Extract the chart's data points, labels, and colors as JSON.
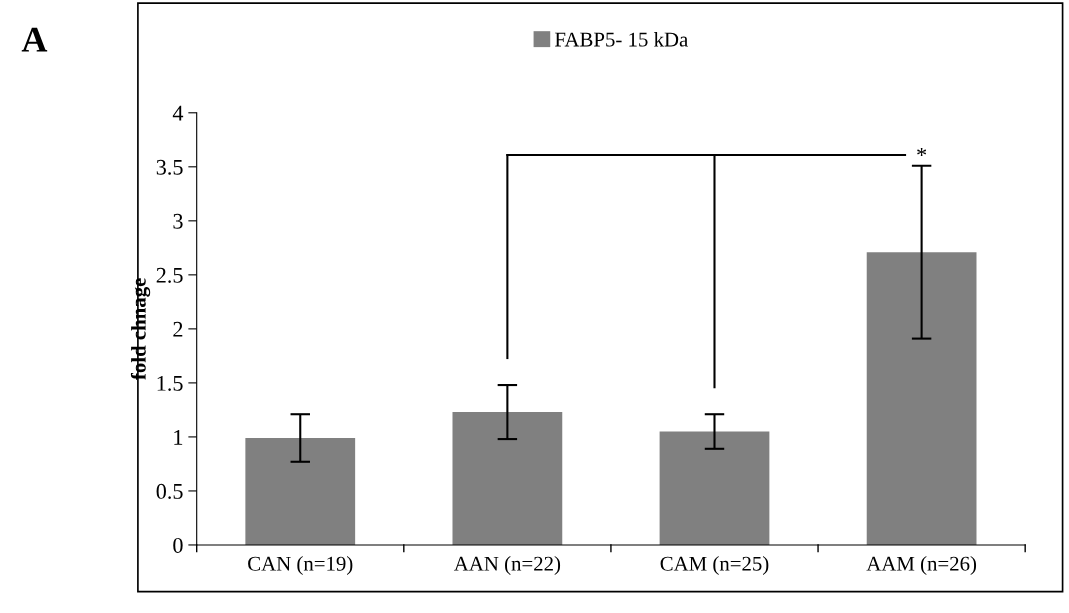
{
  "chart_data": {
    "type": "bar",
    "ylabel": "fold chnage",
    "categories": [
      "CAN (n=19)",
      "AAN (n=22)",
      "CAM (n=25)",
      "AAM (n=26)"
    ],
    "series": [
      {
        "name": "FABP5- 15 kDa",
        "color": "#808080",
        "values": [
          0.99,
          1.23,
          1.05,
          2.71
        ],
        "errors": [
          0.22,
          0.25,
          0.16,
          0.8
        ]
      }
    ],
    "ylim": [
      0,
      4
    ],
    "yticks": [
      0,
      0.5,
      1,
      1.5,
      2,
      2.5,
      3,
      3.5,
      4
    ],
    "grid": false,
    "legend": "top",
    "annotations": [
      "A",
      "*"
    ]
  }
}
